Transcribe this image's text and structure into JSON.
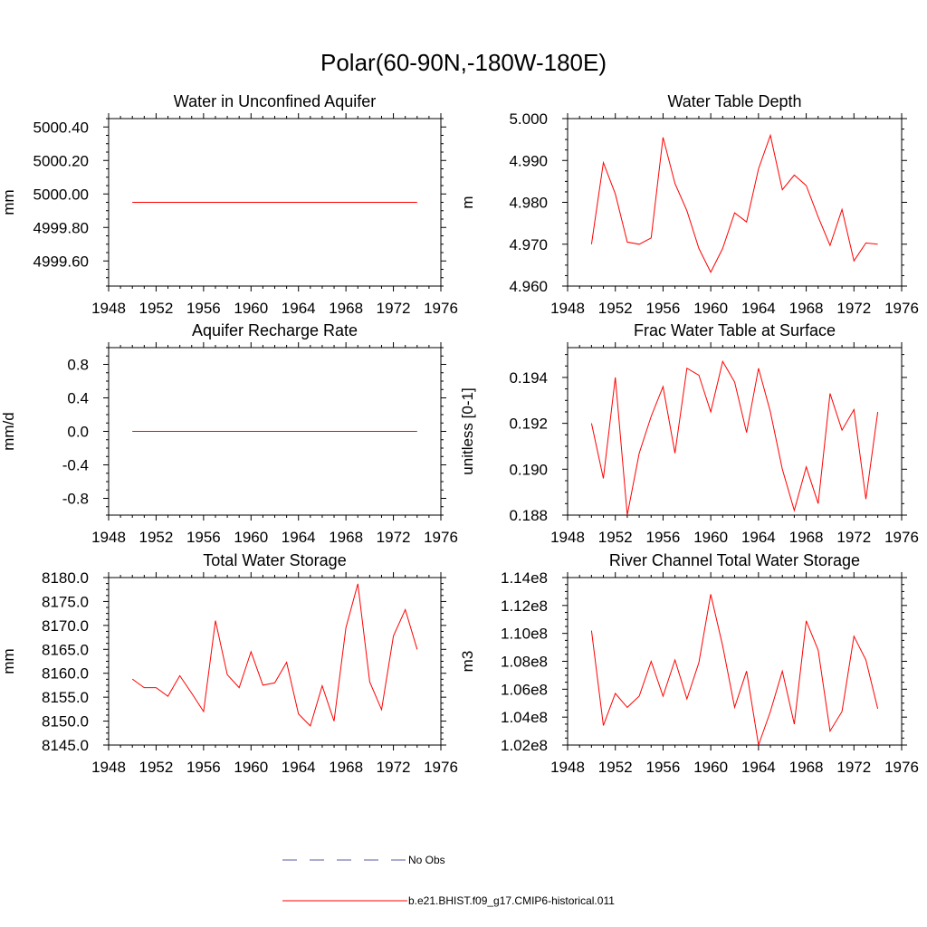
{
  "figure": {
    "title": "Polar(60-90N,-180W-180E)"
  },
  "colors": {
    "model_line": "#ff0000",
    "obs_line": "#5a5aa0",
    "axis": "#000000"
  },
  "legend": {
    "entries": [
      {
        "label": "No Obs",
        "style": "dashed",
        "color": "#5a5aa0"
      },
      {
        "label": "b.e21.BHIST.f09_g17.CMIP6-historical.011",
        "style": "solid",
        "color": "#ff0000"
      }
    ]
  },
  "chart_data": [
    {
      "type": "line",
      "title": "Water in Unconfined Aquifer",
      "ylabel": "mm",
      "xlim": [
        1948,
        1976
      ],
      "xticks": [
        1948,
        1952,
        1956,
        1960,
        1964,
        1968,
        1972,
        1976
      ],
      "ylim": [
        4999.45,
        5000.45
      ],
      "yticks": [
        4999.6,
        4999.8,
        5000.0,
        5000.2,
        5000.4
      ],
      "ytick_labels": [
        "4999.60",
        "4999.80",
        "5000.00",
        "5000.20",
        "5000.40"
      ],
      "series": [
        {
          "x": [
            1950,
            1974
          ],
          "values": [
            4999.95,
            4999.95
          ]
        }
      ]
    },
    {
      "type": "line",
      "title": "Water Table Depth",
      "ylabel": "m",
      "xlim": [
        1948,
        1976
      ],
      "xticks": [
        1948,
        1952,
        1956,
        1960,
        1964,
        1968,
        1972,
        1976
      ],
      "ylim": [
        4.96,
        5.0
      ],
      "yticks": [
        4.96,
        4.97,
        4.98,
        4.99,
        5.0
      ],
      "ytick_labels": [
        "4.960",
        "4.970",
        "4.980",
        "4.990",
        "5.000"
      ],
      "series": [
        {
          "x": [
            1950,
            1951,
            1952,
            1953,
            1954,
            1955,
            1956,
            1957,
            1958,
            1959,
            1960,
            1961,
            1962,
            1963,
            1964,
            1965,
            1966,
            1967,
            1968,
            1969,
            1970,
            1971,
            1972,
            1973,
            1974
          ],
          "values": [
            4.97,
            4.9895,
            4.982,
            4.9705,
            4.97,
            4.9715,
            4.9955,
            4.9845,
            4.978,
            4.969,
            4.9633,
            4.969,
            4.9775,
            4.9753,
            4.988,
            4.996,
            4.983,
            4.9865,
            4.984,
            4.9765,
            4.9697,
            4.9783,
            4.966,
            4.9703,
            4.97
          ]
        }
      ]
    },
    {
      "type": "line",
      "title": "Aquifer Recharge Rate",
      "ylabel": "mm/d",
      "xlim": [
        1948,
        1976
      ],
      "xticks": [
        1948,
        1952,
        1956,
        1960,
        1964,
        1968,
        1972,
        1976
      ],
      "ylim": [
        -1.0,
        1.0
      ],
      "yticks": [
        -0.8,
        -0.4,
        0.0,
        0.4,
        0.8
      ],
      "ytick_labels": [
        "-0.8",
        "-0.4",
        "0.0",
        "0.4",
        "0.8"
      ],
      "series": [
        {
          "x": [
            1950,
            1974
          ],
          "values": [
            0.0,
            0.0
          ]
        }
      ]
    },
    {
      "type": "line",
      "title": "Frac Water Table at Surface",
      "ylabel": "unitless [0-1]",
      "xlim": [
        1948,
        1976
      ],
      "xticks": [
        1948,
        1952,
        1956,
        1960,
        1964,
        1968,
        1972,
        1976
      ],
      "ylim": [
        0.188,
        0.1953
      ],
      "yticks": [
        0.188,
        0.19,
        0.192,
        0.194
      ],
      "ytick_labels": [
        "0.188",
        "0.190",
        "0.192",
        "0.194"
      ],
      "series": [
        {
          "x": [
            1950,
            1951,
            1952,
            1953,
            1954,
            1955,
            1956,
            1957,
            1958,
            1959,
            1960,
            1961,
            1962,
            1963,
            1964,
            1965,
            1966,
            1967,
            1968,
            1969,
            1970,
            1971,
            1972,
            1973,
            1974
          ],
          "values": [
            0.192,
            0.1896,
            0.194,
            0.188,
            0.1907,
            0.1923,
            0.1936,
            0.1907,
            0.1944,
            0.1941,
            0.1925,
            0.1947,
            0.1938,
            0.1916,
            0.1944,
            0.1925,
            0.19,
            0.1882,
            0.1901,
            0.1885,
            0.1933,
            0.1917,
            0.1926,
            0.1887,
            0.1925
          ]
        }
      ]
    },
    {
      "type": "line",
      "title": "Total Water Storage",
      "ylabel": "mm",
      "xlim": [
        1948,
        1976
      ],
      "xticks": [
        1948,
        1952,
        1956,
        1960,
        1964,
        1968,
        1972,
        1976
      ],
      "ylim": [
        8145.0,
        8180.0
      ],
      "yticks": [
        8145,
        8150,
        8155,
        8160,
        8165,
        8170,
        8175,
        8180
      ],
      "ytick_labels": [
        "8145.0",
        "8150.0",
        "8155.0",
        "8160.0",
        "8165.0",
        "8170.0",
        "8175.0",
        "8180.0"
      ],
      "series": [
        {
          "x": [
            1950,
            1951,
            1952,
            1953,
            1954,
            1955,
            1956,
            1957,
            1958,
            1959,
            1960,
            1961,
            1962,
            1963,
            1964,
            1965,
            1966,
            1967,
            1968,
            1969,
            1970,
            1971,
            1972,
            1973,
            1974
          ],
          "values": [
            8158.8,
            8157.0,
            8157.0,
            8155.2,
            8159.5,
            8155.8,
            8152.0,
            8171.0,
            8159.7,
            8157.0,
            8164.5,
            8157.5,
            8158.0,
            8162.3,
            8151.5,
            8149.0,
            8157.4,
            8150.0,
            8169.5,
            8178.7,
            8158.2,
            8152.4,
            8167.8,
            8173.3,
            8165.0
          ]
        }
      ]
    },
    {
      "type": "line",
      "title": "River Channel Total Water Storage",
      "ylabel": "m3",
      "xlim": [
        1948,
        1976
      ],
      "xticks": [
        1948,
        1952,
        1956,
        1960,
        1964,
        1968,
        1972,
        1976
      ],
      "ylim": [
        102000000,
        114000000
      ],
      "yticks": [
        102000000,
        104000000,
        106000000,
        108000000,
        110000000,
        112000000,
        114000000
      ],
      "ytick_labels": [
        "1.02e8",
        "1.04e8",
        "1.06e8",
        "1.08e8",
        "1.10e8",
        "1.12e8",
        "1.14e8"
      ],
      "series": [
        {
          "x": [
            1950,
            1951,
            1952,
            1953,
            1954,
            1955,
            1956,
            1957,
            1958,
            1959,
            1960,
            1961,
            1962,
            1963,
            1964,
            1965,
            1966,
            1967,
            1968,
            1969,
            1970,
            1971,
            1972,
            1973,
            1974
          ],
          "values": [
            110200000,
            103400000,
            105700000,
            104700000,
            105500000,
            108000000,
            105500000,
            108100000,
            105300000,
            107900000,
            112800000,
            109100000,
            104700000,
            107300000,
            102000000,
            104400000,
            107300000,
            103500000,
            110900000,
            108800000,
            103000000,
            104400000,
            109800000,
            108100000,
            104600000
          ]
        }
      ]
    }
  ]
}
